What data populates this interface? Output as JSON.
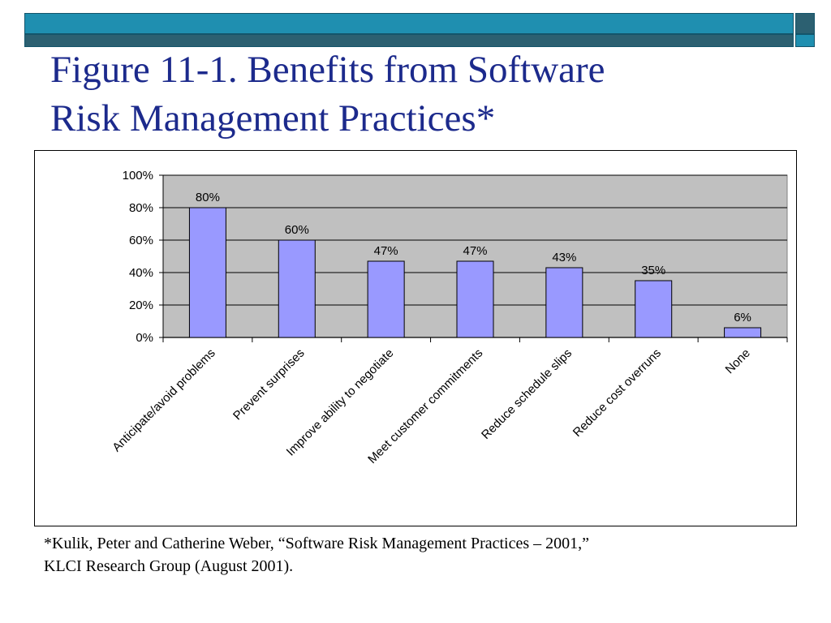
{
  "slide": {
    "title_line1": "Figure 11-1. Benefits from Software",
    "title_line2": "Risk Management Practices*",
    "footnote_line1": "*Kulik, Peter and Catherine Weber, “Software Risk Management Practices – 2001,”",
    "footnote_line2": "KLCI Research Group (August 2001).",
    "colors": {
      "header_band": "#1f8fb0",
      "header_dark": "#2c6071",
      "title_text": "#1c2a8c",
      "bar_fill": "#9999ff",
      "plot_background": "#c0c0c0"
    }
  },
  "chart_data": {
    "type": "bar",
    "title": "",
    "xlabel": "",
    "ylabel": "",
    "categories": [
      "Anticipate/avoid problems",
      "Prevent surprises",
      "Improve ability to negotiate",
      "Meet customer commitments",
      "Reduce schedule slips",
      "Reduce cost overruns",
      "None"
    ],
    "values": [
      80,
      60,
      47,
      47,
      43,
      35,
      6
    ],
    "data_labels": [
      "80%",
      "60%",
      "47%",
      "47%",
      "43%",
      "35%",
      "6%"
    ],
    "ylim": [
      0,
      100
    ],
    "y_ticks": [
      0,
      20,
      40,
      60,
      80,
      100
    ],
    "y_tick_labels": [
      "0%",
      "20%",
      "40%",
      "60%",
      "80%",
      "100%"
    ],
    "grid": true,
    "legend": "none"
  }
}
